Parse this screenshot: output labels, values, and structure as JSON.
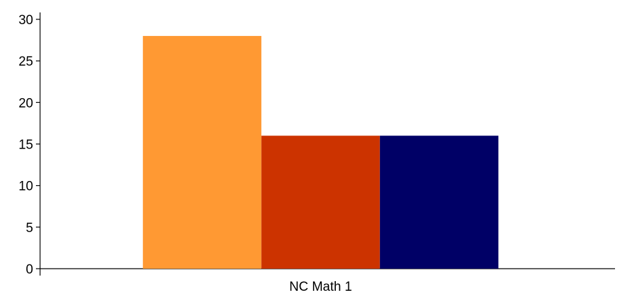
{
  "chart_data": {
    "type": "bar",
    "title": "",
    "xlabel": "",
    "ylabel": "",
    "categories": [
      "NC Math 1"
    ],
    "series": [
      {
        "values": [
          28
        ],
        "color": "#ff9933"
      },
      {
        "values": [
          16
        ],
        "color": "#cc3300"
      },
      {
        "values": [
          16
        ],
        "color": "#000066"
      }
    ],
    "ylim": [
      0,
      30
    ],
    "yticks": [
      "0",
      "5",
      "10",
      "15",
      "20",
      "25",
      "30"
    ],
    "grid": false,
    "legend": "none"
  }
}
